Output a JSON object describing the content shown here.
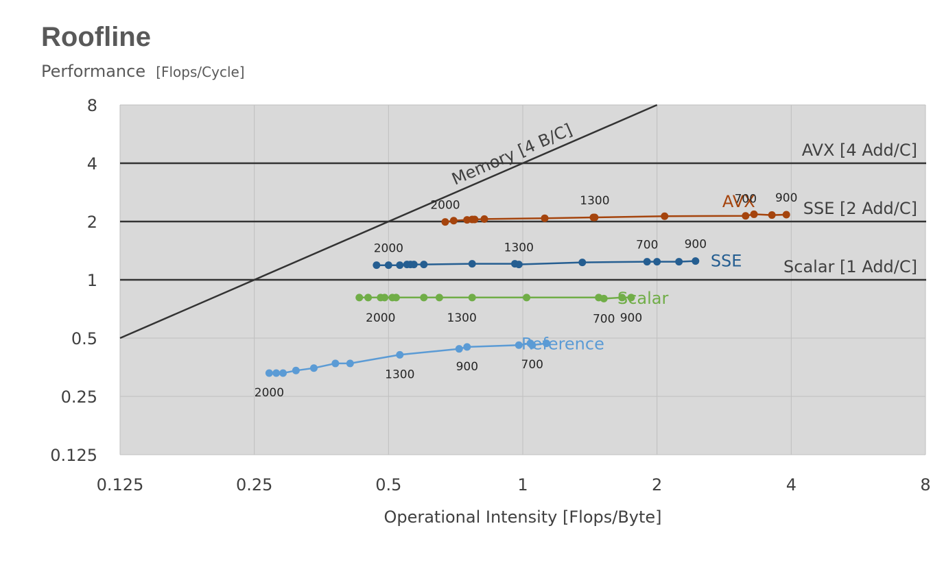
{
  "chart_data": {
    "type": "scatter",
    "title": "Roofline",
    "ylabel": "Performance",
    "ylabel_unit": "[Flops/Cycle]",
    "xlabel": "Operational Intensity [Flops/Byte]",
    "x_scale": "log2",
    "y_scale": "log2",
    "xlim": [
      0.125,
      8
    ],
    "ylim": [
      0.125,
      8
    ],
    "x_ticks": [
      0.125,
      0.25,
      0.5,
      1,
      2,
      4,
      8
    ],
    "x_tick_labels": [
      "0.125",
      "0.25",
      "0.5",
      "1",
      "2",
      "4",
      "8"
    ],
    "y_ticks": [
      0.125,
      0.25,
      0.5,
      1,
      2,
      4,
      8
    ],
    "y_tick_labels": [
      "0.125",
      "0.25",
      "0.5",
      "1",
      "2",
      "4",
      "8"
    ],
    "grid": true,
    "plot_background": "#d9d9d9",
    "grid_color": "#bfbfbf",
    "roofs": [
      {
        "label": "Memory [4 B/C]",
        "type": "diagonal",
        "bytes_per_cycle": 4,
        "color": "#333333"
      },
      {
        "label": "AVX [4 Add/C]",
        "type": "horizontal",
        "y": 4,
        "color": "#333333"
      },
      {
        "label": "SSE [2 Add/C]",
        "type": "horizontal",
        "y": 2,
        "color": "#333333"
      },
      {
        "label": "Scalar [1 Add/C]",
        "type": "horizontal",
        "y": 1,
        "color": "#333333"
      }
    ],
    "series": [
      {
        "name": "AVX",
        "color": "#a5440d",
        "points": [
          {
            "x": 0.67,
            "y": 1.99
          },
          {
            "x": 0.7,
            "y": 2.02
          },
          {
            "x": 0.75,
            "y": 2.04
          },
          {
            "x": 0.77,
            "y": 2.05
          },
          {
            "x": 0.78,
            "y": 2.05
          },
          {
            "x": 0.82,
            "y": 2.06
          },
          {
            "x": 1.12,
            "y": 2.08
          },
          {
            "x": 1.44,
            "y": 2.1
          },
          {
            "x": 1.45,
            "y": 2.1
          },
          {
            "x": 2.08,
            "y": 2.13
          },
          {
            "x": 3.16,
            "y": 2.14
          },
          {
            "x": 3.3,
            "y": 2.18
          },
          {
            "x": 3.62,
            "y": 2.16
          },
          {
            "x": 3.9,
            "y": 2.17
          }
        ],
        "annotations": [
          {
            "text": "2000",
            "x": 0.67
          },
          {
            "text": "1300",
            "x": 1.45
          },
          {
            "text": "700",
            "x": 3.16
          },
          {
            "text": "900",
            "x": 3.9
          }
        ]
      },
      {
        "name": "SSE",
        "color": "#255e91",
        "points": [
          {
            "x": 0.47,
            "y": 1.19
          },
          {
            "x": 0.5,
            "y": 1.19
          },
          {
            "x": 0.53,
            "y": 1.19
          },
          {
            "x": 0.55,
            "y": 1.2
          },
          {
            "x": 0.56,
            "y": 1.2
          },
          {
            "x": 0.57,
            "y": 1.2
          },
          {
            "x": 0.6,
            "y": 1.2
          },
          {
            "x": 0.77,
            "y": 1.21
          },
          {
            "x": 0.96,
            "y": 1.21
          },
          {
            "x": 0.98,
            "y": 1.2
          },
          {
            "x": 1.36,
            "y": 1.23
          },
          {
            "x": 1.9,
            "y": 1.24
          },
          {
            "x": 2.0,
            "y": 1.24
          },
          {
            "x": 2.24,
            "y": 1.24
          },
          {
            "x": 2.44,
            "y": 1.25
          }
        ],
        "annotations": [
          {
            "text": "2000",
            "x": 0.5
          },
          {
            "text": "1300",
            "x": 0.98
          },
          {
            "text": "700",
            "x": 1.9
          },
          {
            "text": "900",
            "x": 2.44
          }
        ]
      },
      {
        "name": "Scalar",
        "color": "#70ad47",
        "points": [
          {
            "x": 0.43,
            "y": 0.81
          },
          {
            "x": 0.45,
            "y": 0.81
          },
          {
            "x": 0.48,
            "y": 0.81
          },
          {
            "x": 0.49,
            "y": 0.81
          },
          {
            "x": 0.51,
            "y": 0.81
          },
          {
            "x": 0.52,
            "y": 0.81
          },
          {
            "x": 0.6,
            "y": 0.81
          },
          {
            "x": 0.65,
            "y": 0.81
          },
          {
            "x": 0.77,
            "y": 0.81
          },
          {
            "x": 1.02,
            "y": 0.81
          },
          {
            "x": 1.48,
            "y": 0.81
          },
          {
            "x": 1.52,
            "y": 0.8
          },
          {
            "x": 1.67,
            "y": 0.81
          },
          {
            "x": 1.75,
            "y": 0.81
          }
        ],
        "annotations": [
          {
            "text": "2000",
            "x": 0.48
          },
          {
            "text": "1300",
            "x": 0.73
          },
          {
            "text": "700",
            "x": 1.52
          },
          {
            "text": "900",
            "x": 1.75
          }
        ]
      },
      {
        "name": "Reference",
        "color": "#5b9bd5",
        "points": [
          {
            "x": 0.27,
            "y": 0.33
          },
          {
            "x": 0.28,
            "y": 0.33
          },
          {
            "x": 0.29,
            "y": 0.33
          },
          {
            "x": 0.31,
            "y": 0.34
          },
          {
            "x": 0.34,
            "y": 0.35
          },
          {
            "x": 0.38,
            "y": 0.37
          },
          {
            "x": 0.41,
            "y": 0.37
          },
          {
            "x": 0.53,
            "y": 0.41
          },
          {
            "x": 0.72,
            "y": 0.44
          },
          {
            "x": 0.75,
            "y": 0.45
          },
          {
            "x": 0.98,
            "y": 0.46
          },
          {
            "x": 1.04,
            "y": 0.47
          },
          {
            "x": 1.05,
            "y": 0.46
          },
          {
            "x": 1.13,
            "y": 0.47
          }
        ],
        "annotations": [
          {
            "text": "2000",
            "x": 0.27
          },
          {
            "text": "1300",
            "x": 0.53
          },
          {
            "text": "900",
            "x": 0.75
          },
          {
            "text": "700",
            "x": 1.05
          }
        ]
      }
    ]
  }
}
